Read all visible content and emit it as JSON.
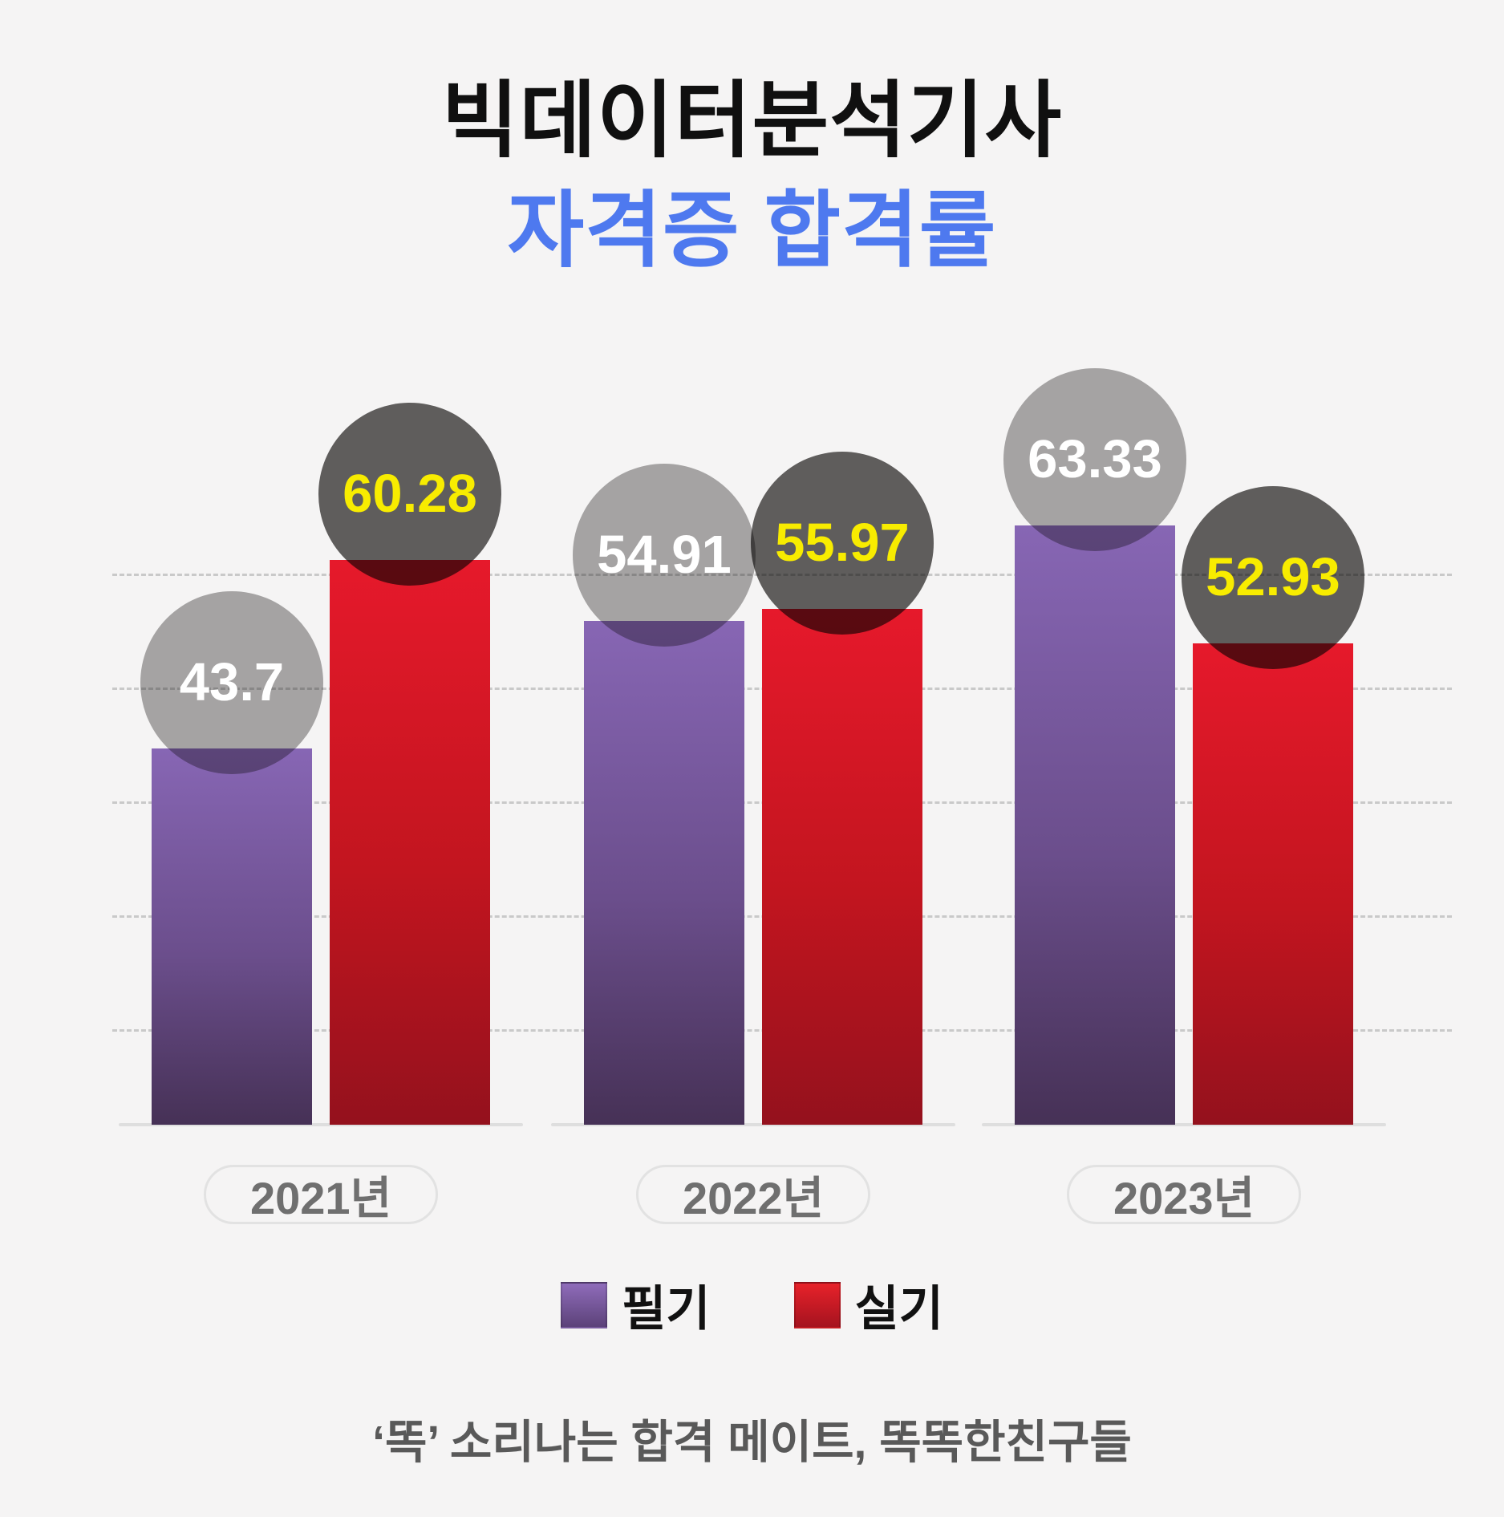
{
  "header": {
    "title": "빅데이터분석기사",
    "subtitle": "자격증 합격률",
    "title_color": "#101010",
    "subtitle_color": "#4E79EF"
  },
  "chart_data": {
    "type": "bar",
    "categories": [
      "2021년",
      "2022년",
      "2023년"
    ],
    "series": [
      {
        "name": "필기",
        "values": [
          43.7,
          54.91,
          63.33
        ],
        "labels": [
          "43.7",
          "54.91",
          "63.33"
        ],
        "bar_color_top": "#8766B4",
        "bar_color_bottom": "#463156",
        "bubble_color": "#ACABAB",
        "bubble_text_color": "#FFFFFF"
      },
      {
        "name": "실기",
        "values": [
          60.28,
          55.97,
          52.93
        ],
        "labels": [
          "60.28",
          "55.97",
          "52.93"
        ],
        "bar_color_top": "#E6192B",
        "bar_color_bottom": "#94111D",
        "bubble_color": "#636160",
        "bubble_text_color": "#F8EC00"
      }
    ],
    "title": "빅데이터분석기사 자격증 합격률",
    "xlabel": "",
    "ylabel": "",
    "value_axis_labels_visible": false,
    "gridlines": "dashed horizontal, unlabeled",
    "legend_position": "bottom",
    "background": "#F5F4F4"
  },
  "legend": {
    "items": [
      {
        "label": "필기",
        "color": "#8766B4"
      },
      {
        "label": "실기",
        "color": "#E6192B"
      }
    ]
  },
  "footer": {
    "tagline": "‘똑’ 소리나는 합격 메이트, 똑똑한친구들"
  }
}
